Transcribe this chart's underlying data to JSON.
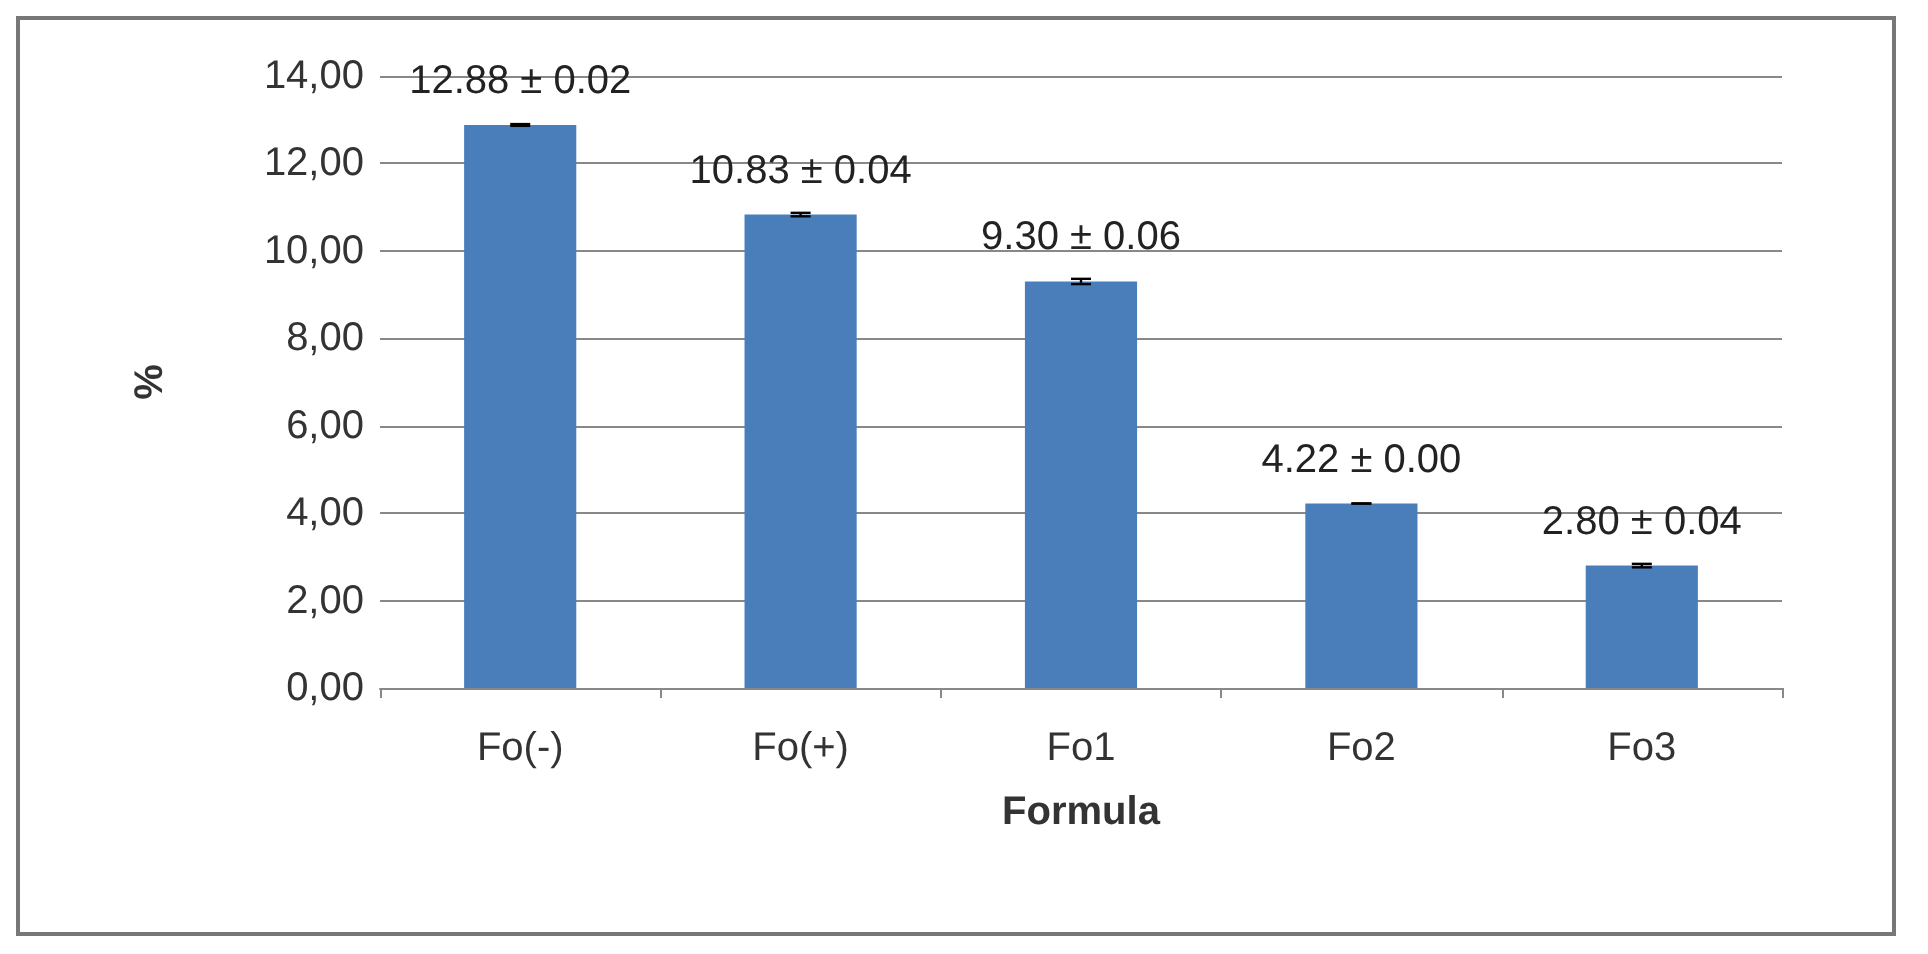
{
  "chart_data": {
    "type": "bar",
    "xlabel": "Formula",
    "ylabel": "%",
    "categories": [
      "Fo(-)",
      "Fo(+)",
      "Fo1",
      "Fo2",
      "Fo3"
    ],
    "values": [
      12.88,
      10.83,
      9.3,
      4.22,
      2.8
    ],
    "errors": [
      0.02,
      0.04,
      0.06,
      0.0,
      0.04
    ],
    "value_labels": [
      "12.88 ± 0.02",
      "10.83 ± 0.04",
      "9.30 ± 0.06",
      "4.22 ± 0.00",
      "2.80 ± 0.04"
    ],
    "color": "#4a7ebb",
    "ylim": [
      0,
      14
    ],
    "yticks": [
      {
        "value": 0,
        "label": "0,00"
      },
      {
        "value": 2,
        "label": "2,00"
      },
      {
        "value": 4,
        "label": "4,00"
      },
      {
        "value": 6,
        "label": "6,00"
      },
      {
        "value": 8,
        "label": "8,00"
      },
      {
        "value": 10,
        "label": "10,00"
      },
      {
        "value": 12,
        "label": "12,00"
      },
      {
        "value": 14,
        "label": "14,00"
      }
    ],
    "grid": "y"
  }
}
